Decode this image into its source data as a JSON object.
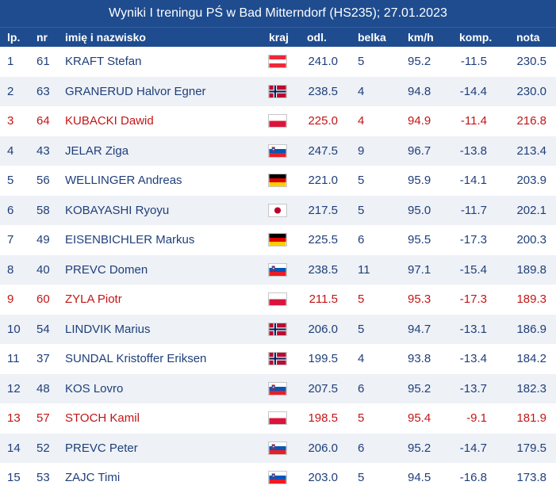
{
  "title": "Wyniki I treningu PŚ w Bad Mitterndorf (HS235); 27.01.2023",
  "columns": {
    "lp": "lp.",
    "nr": "nr",
    "name": "imię i nazwisko",
    "kraj": "kraj",
    "odl": "odl.",
    "belka": "belka",
    "kmh": "km/h",
    "komp": "komp.",
    "nota": "nota"
  },
  "colors": {
    "header_bg": "#1e4c8f",
    "text": "#1f3f7a",
    "highlight": "#c31515",
    "alt_row": "#eef1f6"
  },
  "rows": [
    {
      "lp": "1",
      "nr": "61",
      "name": "KRAFT Stefan",
      "flag": "austria-flag",
      "odl": "241.0",
      "belka": "5",
      "kmh": "95.2",
      "komp": "-11.5",
      "nota": "230.5",
      "highlight": false
    },
    {
      "lp": "2",
      "nr": "63",
      "name": "GRANERUD Halvor Egner",
      "flag": "norway-flag",
      "odl": "238.5",
      "belka": "4",
      "kmh": "94.8",
      "komp": "-14.4",
      "nota": "230.0",
      "highlight": false
    },
    {
      "lp": "3",
      "nr": "64",
      "name": "KUBACKI Dawid",
      "flag": "poland-flag",
      "odl": "225.0",
      "belka": "4",
      "kmh": "94.9",
      "komp": "-11.4",
      "nota": "216.8",
      "highlight": true
    },
    {
      "lp": "4",
      "nr": "43",
      "name": "JELAR Ziga",
      "flag": "slovenia-flag",
      "odl": "247.5",
      "belka": "9",
      "kmh": "96.7",
      "komp": "-13.8",
      "nota": "213.4",
      "highlight": false
    },
    {
      "lp": "5",
      "nr": "56",
      "name": "WELLINGER Andreas",
      "flag": "germany-flag",
      "odl": "221.0",
      "belka": "5",
      "kmh": "95.9",
      "komp": "-14.1",
      "nota": "203.9",
      "highlight": false
    },
    {
      "lp": "6",
      "nr": "58",
      "name": "KOBAYASHI Ryoyu",
      "flag": "japan-flag",
      "odl": "217.5",
      "belka": "5",
      "kmh": "95.0",
      "komp": "-11.7",
      "nota": "202.1",
      "highlight": false
    },
    {
      "lp": "7",
      "nr": "49",
      "name": "EISENBICHLER Markus",
      "flag": "germany-flag",
      "odl": "225.5",
      "belka": "6",
      "kmh": "95.5",
      "komp": "-17.3",
      "nota": "200.3",
      "highlight": false
    },
    {
      "lp": "8",
      "nr": "40",
      "name": "PREVC Domen",
      "flag": "slovenia-flag",
      "odl": "238.5",
      "belka": "11",
      "kmh": "97.1",
      "komp": "-15.4",
      "nota": "189.8",
      "highlight": false
    },
    {
      "lp": "9",
      "nr": "60",
      "name": "ZYLA Piotr",
      "flag": "poland-flag",
      "odl": "211.5",
      "belka": "5",
      "kmh": "95.3",
      "komp": "-17.3",
      "nota": "189.3",
      "highlight": true
    },
    {
      "lp": "10",
      "nr": "54",
      "name": "LINDVIK Marius",
      "flag": "norway-flag",
      "odl": "206.0",
      "belka": "5",
      "kmh": "94.7",
      "komp": "-13.1",
      "nota": "186.9",
      "highlight": false
    },
    {
      "lp": "11",
      "nr": "37",
      "name": "SUNDAL Kristoffer Eriksen",
      "flag": "norway-flag",
      "odl": "199.5",
      "belka": "4",
      "kmh": "93.8",
      "komp": "-13.4",
      "nota": "184.2",
      "highlight": false
    },
    {
      "lp": "12",
      "nr": "48",
      "name": "KOS Lovro",
      "flag": "slovenia-flag",
      "odl": "207.5",
      "belka": "6",
      "kmh": "95.2",
      "komp": "-13.7",
      "nota": "182.3",
      "highlight": false
    },
    {
      "lp": "13",
      "nr": "57",
      "name": "STOCH Kamil",
      "flag": "poland-flag",
      "odl": "198.5",
      "belka": "5",
      "kmh": "95.4",
      "komp": "-9.1",
      "nota": "181.9",
      "highlight": true
    },
    {
      "lp": "14",
      "nr": "52",
      "name": "PREVC Peter",
      "flag": "slovenia-flag",
      "odl": "206.0",
      "belka": "6",
      "kmh": "95.2",
      "komp": "-14.7",
      "nota": "179.5",
      "highlight": false
    },
    {
      "lp": "15",
      "nr": "53",
      "name": "ZAJC Timi",
      "flag": "slovenia-flag",
      "odl": "203.0",
      "belka": "5",
      "kmh": "94.5",
      "komp": "-16.8",
      "nota": "173.8",
      "highlight": false
    }
  ]
}
